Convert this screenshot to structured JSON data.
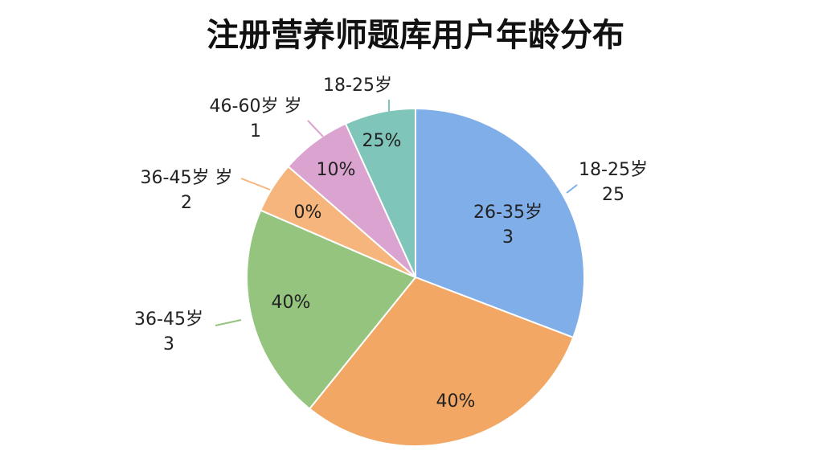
{
  "chart_data": {
    "type": "pie",
    "title": "注册营养师题库用户年龄分布",
    "values": [
      30.8,
      30,
      20.7,
      4.9,
      6.8,
      6.8
    ],
    "colors": [
      "#80aee8",
      "#f2a764",
      "#95c47f",
      "#f6b57c",
      "#dba3cf",
      "#80c5b9"
    ],
    "inner_labels": [
      [
        "26-35岁",
        "3"
      ],
      [
        "40%"
      ],
      [
        "40%"
      ],
      [
        "0%"
      ],
      [
        "10%"
      ],
      [
        "25%"
      ]
    ],
    "outer_labels": [
      [
        "18-25岁",
        "25"
      ],
      null,
      [
        "36-45岁",
        "3"
      ],
      [
        "36-45岁 岁",
        "2"
      ],
      [
        "46-60岁 岁",
        "1"
      ],
      [
        "18-25岁"
      ]
    ]
  }
}
